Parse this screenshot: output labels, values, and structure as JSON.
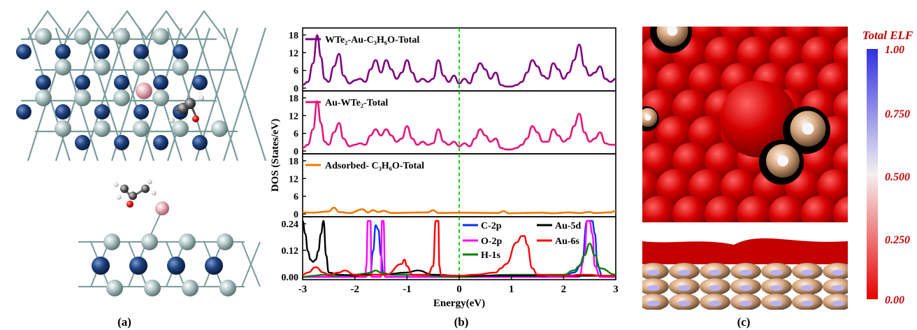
{
  "panels": {
    "a": {
      "label": "(a)"
    },
    "b": {
      "label": "(b)"
    },
    "c": {
      "label": "(c)"
    }
  },
  "colorbar": {
    "title": "Total ELF",
    "ticks": [
      "1.00",
      "0.750",
      "0.500",
      "0.250",
      "0.00"
    ],
    "colors": {
      "top": "#3030e0",
      "mid": "#f4f0f0",
      "bottom": "#e80000"
    }
  },
  "colors": {
    "purple": "#800080",
    "pink": "#e4157b",
    "orange": "#f07800",
    "blue": "#0030ff",
    "magenta": "#ff00ff",
    "green": "#008000",
    "black": "#000000",
    "red": "#ff0000",
    "fermi": "#00cc00",
    "elf_red": "#d40000",
    "atom_light": "#b8cccc",
    "atom_dark": "#1e4380",
    "atom_pink": "#e8b0b8"
  },
  "chart_data": {
    "type": "line",
    "xlabel": "Energy(eV)",
    "ylabel": "DOS (States/eV)",
    "xlim": [
      -3,
      3
    ],
    "xticks": [
      "-3",
      "-2",
      "-1",
      "0",
      "1",
      "2",
      "3"
    ],
    "fermi_level": 0,
    "subplots": [
      {
        "name": "WTe2-Au-C3H6O-Total",
        "label": "WTe₂-Au-C₃H₆O-Total",
        "ylim": [
          0,
          18
        ],
        "yticks": [
          "0",
          "4",
          "8",
          "12",
          "16"
        ],
        "yticks_left": [
          "18",
          "12",
          "6",
          "0"
        ],
        "color": "#800080",
        "x": [
          -3.0,
          -2.9,
          -2.8,
          -2.72,
          -2.65,
          -2.58,
          -2.5,
          -2.4,
          -2.3,
          -2.22,
          -2.1,
          -2.0,
          -1.9,
          -1.8,
          -1.7,
          -1.6,
          -1.5,
          -1.4,
          -1.3,
          -1.2,
          -1.1,
          -1.0,
          -0.9,
          -0.8,
          -0.7,
          -0.6,
          -0.5,
          -0.4,
          -0.3,
          -0.2,
          -0.1,
          0.0,
          0.1,
          0.2,
          0.3,
          0.4,
          0.5,
          0.6,
          0.7,
          0.8,
          0.9,
          1.0,
          1.1,
          1.2,
          1.3,
          1.4,
          1.5,
          1.6,
          1.7,
          1.8,
          1.9,
          2.0,
          2.1,
          2.2,
          2.3,
          2.4,
          2.5,
          2.6,
          2.7,
          2.8,
          2.9,
          3.0
        ],
        "y": [
          1,
          2,
          8,
          17,
          10,
          3,
          2,
          7,
          11,
          4,
          1.5,
          2.5,
          3,
          2,
          6,
          9,
          5,
          9,
          6,
          3,
          5,
          9,
          5,
          2,
          3,
          2,
          3,
          9,
          4,
          2,
          4,
          1.5,
          3,
          1.5,
          5,
          8,
          6,
          3,
          5,
          1,
          0.5,
          0.5,
          1,
          2,
          5,
          9,
          7,
          4,
          3,
          8,
          6,
          3,
          5,
          9,
          14,
          7,
          4,
          5,
          7,
          3,
          2,
          3
        ]
      },
      {
        "name": "Au-WTe2-Total",
        "label": "Au-WTe₂-Total",
        "ylim": [
          0,
          18
        ],
        "yticks_left": [
          "18",
          "12",
          "6",
          "0"
        ],
        "color": "#e4157b",
        "x": [
          -3.0,
          -2.9,
          -2.8,
          -2.72,
          -2.65,
          -2.58,
          -2.5,
          -2.4,
          -2.3,
          -2.22,
          -2.1,
          -2.0,
          -1.9,
          -1.8,
          -1.7,
          -1.6,
          -1.5,
          -1.4,
          -1.3,
          -1.2,
          -1.1,
          -1.0,
          -0.9,
          -0.8,
          -0.7,
          -0.6,
          -0.5,
          -0.4,
          -0.3,
          -0.2,
          -0.1,
          0.0,
          0.1,
          0.2,
          0.3,
          0.4,
          0.5,
          0.6,
          0.7,
          0.8,
          0.9,
          1.0,
          1.1,
          1.2,
          1.3,
          1.4,
          1.5,
          1.6,
          1.7,
          1.8,
          1.9,
          2.0,
          2.1,
          2.2,
          2.3,
          2.4,
          2.5,
          2.6,
          2.7,
          2.8,
          2.9,
          3.0
        ],
        "y": [
          1,
          2,
          7,
          16,
          9,
          3,
          2,
          6,
          9,
          4,
          1.5,
          2,
          2.5,
          2,
          5,
          7,
          5,
          7,
          5,
          3,
          4,
          8,
          4,
          2,
          3,
          2,
          2.5,
          7,
          3,
          2,
          3,
          1.5,
          2.5,
          1.5,
          4,
          7,
          5,
          3,
          4,
          1,
          0.5,
          0.5,
          1,
          2,
          4,
          8,
          6,
          3,
          3,
          7,
          5,
          3,
          4,
          8,
          12,
          6,
          3,
          4,
          6,
          2.5,
          2,
          2
        ]
      },
      {
        "name": "Adsorbed-C3H6O-Total",
        "label": "Adsorbed- C₃H₆O-Total",
        "ylim": [
          0,
          18
        ],
        "yticks_left": [
          "18",
          "12",
          "6",
          "0"
        ],
        "color": "#f07800",
        "x": [
          -3.0,
          -2.8,
          -2.5,
          -2.4,
          -2.3,
          -2.1,
          -1.85,
          -1.75,
          -1.65,
          -1.55,
          -1.45,
          -1.3,
          -0.6,
          -0.5,
          -0.4,
          0.0,
          0.75,
          0.85,
          0.95,
          1.2,
          1.6,
          1.8,
          2.1,
          2.3,
          2.5,
          2.6,
          2.9,
          3.0
        ],
        "y": [
          0.5,
          0.4,
          0.8,
          2.0,
          0.6,
          0.3,
          1.5,
          0.5,
          1.2,
          0.6,
          1.0,
          0.3,
          0.5,
          1.2,
          0.3,
          0.4,
          0.3,
          0.9,
          0.2,
          0.3,
          0.4,
          0.2,
          0.5,
          0.3,
          0.6,
          0.3,
          0.5,
          1.0
        ]
      },
      {
        "name": "PDOS",
        "ylim": [
          0,
          0.26
        ],
        "yticks_left": [
          "0.24",
          "0.12",
          "0.00"
        ],
        "series": [
          {
            "name": "C-2p",
            "color": "#0030ff",
            "x": [
              -3.0,
              -1.8,
              -1.7,
              -1.65,
              -1.6,
              -1.55,
              -1.5,
              -1.45,
              -1.4,
              0.0,
              2.0,
              2.2,
              2.35,
              2.45,
              2.5,
              2.55,
              2.6,
              2.65,
              2.75,
              3.0
            ],
            "y": [
              0.0,
              0.0,
              0.02,
              0.12,
              0.24,
              0.22,
              0.1,
              0.01,
              0.0,
              0.0,
              0.0,
              0.02,
              0.06,
              0.28,
              0.3,
              0.28,
              0.2,
              0.05,
              0.0,
              0.0
            ]
          },
          {
            "name": "O-2p",
            "color": "#ff00ff",
            "x": [
              -3.0,
              -1.8,
              -1.78,
              -1.75,
              -1.7,
              -1.68,
              -1.5,
              -1.48,
              -1.45,
              -1.42,
              0.0,
              2.3,
              2.4,
              2.45,
              2.5,
              2.55,
              2.6,
              2.7,
              3.0
            ],
            "y": [
              0.0,
              0.0,
              0.05,
              0.28,
              0.28,
              0.0,
              0.0,
              0.28,
              0.28,
              0.0,
              0.0,
              0.0,
              0.1,
              0.28,
              0.28,
              0.2,
              0.05,
              0.0,
              0.0
            ]
          },
          {
            "name": "H-1s",
            "color": "#008000",
            "x": [
              -3.0,
              -2.8,
              -2.6,
              -2.4,
              -2.0,
              -1.8,
              -1.7,
              -1.6,
              -1.5,
              -1.3,
              -1.0,
              0.0,
              1.0,
              2.0,
              2.2,
              2.3,
              2.4,
              2.5,
              2.6,
              2.7,
              3.0
            ],
            "y": [
              0.0,
              0.005,
              0.01,
              0.005,
              0.01,
              0.015,
              0.02,
              0.03,
              0.02,
              0.01,
              0.01,
              0.0,
              0.01,
              0.01,
              0.03,
              0.05,
              0.1,
              0.155,
              0.1,
              0.04,
              0.01
            ]
          },
          {
            "name": "Au-5d",
            "color": "#000000",
            "x": [
              -3.0,
              -2.95,
              -2.9,
              -2.85,
              -2.8,
              -2.75,
              -2.7,
              -2.65,
              -2.6,
              -2.55,
              -2.5,
              -2.3,
              -2.0,
              -1.8,
              -1.5,
              -1.0,
              -0.8,
              -0.5,
              0.0,
              0.5,
              1.0,
              1.5,
              2.0,
              2.5,
              3.0
            ],
            "y": [
              0.28,
              0.2,
              0.12,
              0.08,
              0.07,
              0.08,
              0.12,
              0.2,
              0.28,
              0.1,
              0.02,
              0.01,
              0.005,
              0.01,
              0.01,
              0.02,
              0.03,
              0.01,
              0.005,
              0.005,
              0.005,
              0.005,
              0.005,
              0.005,
              0.005
            ]
          },
          {
            "name": "Au-6s",
            "color": "#ff0000",
            "x": [
              -3.0,
              -2.9,
              -2.75,
              -2.6,
              -2.5,
              -2.3,
              -2.2,
              -2.0,
              -1.8,
              -1.6,
              -1.4,
              -1.1,
              -1.05,
              -1.0,
              -0.9,
              -0.8,
              -0.6,
              -0.5,
              -0.45,
              -0.4,
              -0.38,
              -0.35,
              -0.3,
              -0.2,
              0.0,
              0.3,
              0.7,
              0.8,
              0.9,
              1.1,
              1.2,
              1.25,
              1.3,
              1.4,
              1.5,
              1.8,
              2.1,
              2.3,
              2.5,
              2.7,
              3.0
            ],
            "y": [
              0.01,
              0.02,
              0.045,
              0.02,
              0.01,
              0.02,
              0.03,
              0.01,
              0.005,
              0.01,
              0.01,
              0.06,
              0.08,
              0.05,
              0.01,
              0.01,
              0.01,
              0.05,
              0.28,
              0.28,
              0.05,
              0.01,
              0.005,
              0.005,
              0.005,
              0.01,
              0.02,
              0.04,
              0.06,
              0.16,
              0.19,
              0.19,
              0.15,
              0.04,
              0.01,
              0.005,
              0.005,
              0.01,
              0.01,
              0.005,
              0.005
            ]
          }
        ],
        "legend": [
          "C-2p",
          "Au-5d",
          "O-2p",
          "Au-6s",
          "H-1s"
        ]
      }
    ]
  }
}
